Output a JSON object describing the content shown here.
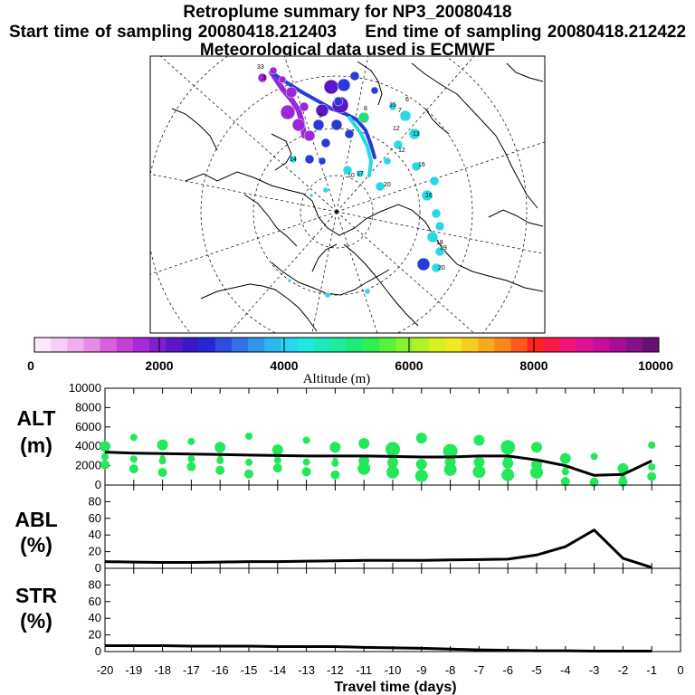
{
  "header": {
    "title": "Retroplume summary for NP3_20080418",
    "start_label": "Start time of sampling 20080418.212403",
    "end_label": "End time of sampling 20080418.212422",
    "met_label": "Meteorological data used is ECMWF"
  },
  "colorbar": {
    "ticks": [
      "0",
      "2000",
      "4000",
      "6000",
      "8000",
      "10000"
    ],
    "label": "Altitude (m)",
    "colors": [
      "#fbe9fb",
      "#f6cdf6",
      "#efb0f0",
      "#e68be8",
      "#da5fe0",
      "#c43fd8",
      "#a52bd6",
      "#7f1fcf",
      "#5a17c9",
      "#3a18c8",
      "#2626d8",
      "#2b4de0",
      "#2f73e6",
      "#2f97ea",
      "#2bb8ee",
      "#29d6ee",
      "#1ee8e0",
      "#1ee8c0",
      "#1eeaa0",
      "#1eea78",
      "#2ef050",
      "#58f23a",
      "#86f230",
      "#b0f228",
      "#d6f020",
      "#f2ea20",
      "#f6cc1e",
      "#f8aa1c",
      "#fa861c",
      "#fc5a1e",
      "#fe2222",
      "#fa1a4a",
      "#f21478",
      "#e01098",
      "#c80c9c",
      "#a80c98",
      "#86108a",
      "#661072"
    ]
  },
  "map": {
    "labels": [
      "33",
      "3",
      "9",
      "15",
      "16",
      "12",
      "13",
      "11",
      "17",
      "14",
      "10",
      "18",
      "19",
      "20",
      "8",
      "7",
      "6"
    ],
    "colors": {
      "purple": "#9b27d8",
      "blue": "#2a3ad8",
      "cyan": "#27d8e6",
      "green": "#24e07a",
      "dark": "#5a17c9"
    }
  },
  "chart_data": [
    {
      "type": "line",
      "name": "ALT",
      "ylabel": [
        "ALT",
        "(m)"
      ],
      "x": [
        -20,
        -19,
        -18,
        -17,
        -16,
        -15,
        -14,
        -13,
        -12,
        -11,
        -10,
        -9,
        -8,
        -7,
        -6,
        -5,
        -4,
        -3,
        -2,
        -1
      ],
      "values": [
        3400,
        3300,
        3250,
        3200,
        3150,
        3100,
        3050,
        3000,
        3000,
        3000,
        2950,
        2900,
        2900,
        3000,
        3000,
        2600,
        2000,
        1000,
        1100,
        2500
      ],
      "ylim": [
        0,
        10000
      ],
      "yticks": [
        "0",
        "2000",
        "4000",
        "6000",
        "8000",
        "10000"
      ],
      "marker_color": "#22e85a"
    },
    {
      "type": "line",
      "name": "ABL",
      "ylabel": [
        "ABL",
        "(%)"
      ],
      "x": [
        -20,
        -19,
        -18,
        -17,
        -16,
        -15,
        -14,
        -13,
        -12,
        -11,
        -10,
        -9,
        -8,
        -7,
        -6,
        -5,
        -4,
        -3,
        -2,
        -1
      ],
      "values": [
        8,
        7.5,
        7,
        7,
        7.5,
        8,
        8,
        8.5,
        9,
        9.5,
        9.5,
        9.5,
        10,
        10.5,
        11,
        16,
        26,
        46,
        12,
        1
      ],
      "ylim": [
        0,
        100
      ],
      "yticks": [
        "0",
        "20",
        "40",
        "60",
        "80"
      ]
    },
    {
      "type": "line",
      "name": "STR",
      "ylabel": [
        "STR",
        "(%)"
      ],
      "x": [
        -20,
        -19,
        -18,
        -17,
        -16,
        -15,
        -14,
        -13,
        -12,
        -11,
        -10,
        -9,
        -8,
        -7,
        -6,
        -5,
        -4,
        -3,
        -2,
        -1
      ],
      "values": [
        7,
        7,
        7,
        6.5,
        6.5,
        6.5,
        6,
        6,
        6,
        5,
        4.5,
        4,
        3,
        2,
        1.5,
        1,
        1,
        0.5,
        0.5,
        0.5
      ],
      "ylim": [
        0,
        100
      ],
      "yticks": [
        "0",
        "20",
        "40",
        "60",
        "80"
      ]
    }
  ],
  "xaxis": {
    "ticks": [
      "-20",
      "-19",
      "-18",
      "-17",
      "-16",
      "-15",
      "-14",
      "-13",
      "-12",
      "-11",
      "-10",
      "-9",
      "-8",
      "-7",
      "-6",
      "-5",
      "-4",
      "-3",
      "-2",
      "-1",
      "0"
    ],
    "label": "Travel time (days)",
    "xlim": [
      -20,
      0
    ]
  }
}
